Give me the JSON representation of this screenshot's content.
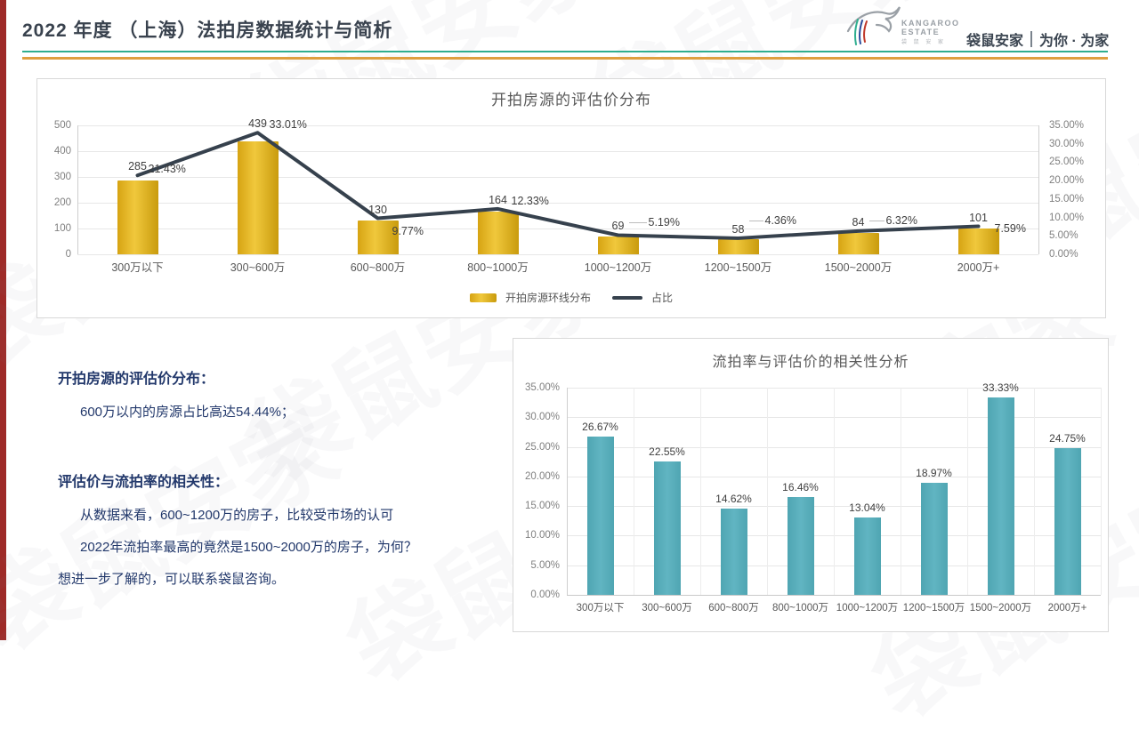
{
  "page": {
    "title": "2022 年度 （上海）法拍房数据统计与简析"
  },
  "brand": {
    "wordmark_line1": "KANGAROO",
    "wordmark_line2": "ESTATE",
    "wordmark_sub": "袋 鼠 安 家",
    "tagline_brand": "袋鼠安家",
    "tagline_slogan": "为你 · 为家"
  },
  "watermark": {
    "text": "袋鼠安家"
  },
  "colors": {
    "accent_left": "#9e2b28",
    "rule_green": "#2fae8f",
    "rule_orange": "#df9f3f",
    "bar_gold": "#e4b41c",
    "line_dark": "#36414d",
    "bar_teal": "#57acb9",
    "note_navy": "#22386b"
  },
  "chart_data": [
    {
      "type": "bar",
      "title": "开拍房源的评估价分布",
      "categories": [
        "300万以下",
        "300~600万",
        "600~800万",
        "800~1000万",
        "1000~1200万",
        "1200~1500万",
        "1500~2000万",
        "2000万+"
      ],
      "series": [
        {
          "name": "开拍房源环线分布",
          "type": "bar",
          "axis": "left",
          "values": [
            285,
            439,
            130,
            164,
            69,
            58,
            84,
            101
          ]
        },
        {
          "name": "占比",
          "type": "line",
          "axis": "right",
          "values": [
            21.43,
            33.01,
            9.77,
            12.33,
            5.19,
            4.36,
            6.32,
            7.59
          ],
          "labels": [
            "21.43%",
            "33.01%",
            "9.77%",
            "12.33%",
            "5.19%",
            "4.36%",
            "6.32%",
            "7.59%"
          ]
        }
      ],
      "left_axis": {
        "min": 0,
        "max": 500,
        "step": 100,
        "ticks": [
          "500",
          "400",
          "300",
          "200",
          "100",
          "0"
        ]
      },
      "right_axis": {
        "min": 0,
        "max": 35,
        "step": 5,
        "ticks": [
          "35.00%",
          "30.00%",
          "25.00%",
          "20.00%",
          "15.00%",
          "10.00%",
          "5.00%",
          "0.00%"
        ]
      },
      "legend_position": "bottom",
      "grid": "horizontal"
    },
    {
      "type": "bar",
      "title": "流拍率与评估价的相关性分析",
      "categories": [
        "300万以下",
        "300~600万",
        "600~800万",
        "800~1000万",
        "1000~1200万",
        "1200~1500万",
        "1500~2000万",
        "2000万+"
      ],
      "values": [
        26.67,
        22.55,
        14.62,
        16.46,
        13.04,
        18.97,
        33.33,
        24.75
      ],
      "labels": [
        "26.67%",
        "22.55%",
        "14.62%",
        "16.46%",
        "13.04%",
        "18.97%",
        "33.33%",
        "24.75%"
      ],
      "ylabel": "",
      "xlabel": "",
      "y_axis": {
        "min": 0,
        "max": 35,
        "step": 5,
        "ticks": [
          "35.00%",
          "30.00%",
          "25.00%",
          "20.00%",
          "15.00%",
          "10.00%",
          "5.00%",
          "0.00%"
        ]
      },
      "grid": "both",
      "legend_position": "none"
    }
  ],
  "notes": {
    "s1_title": "开拍房源的评估价分布：",
    "s1_line1": "600万以内的房源占比高达54.44%；",
    "s2_title": "评估价与流拍率的相关性：",
    "s2_line1": "从数据来看，600~1200万的房子，比较受市场的认可",
    "s2_line2": "2022年流拍率最高的竟然是1500~2000万的房子，为何？",
    "s2_line3": "想进一步了解的，可以联系袋鼠咨询。"
  }
}
